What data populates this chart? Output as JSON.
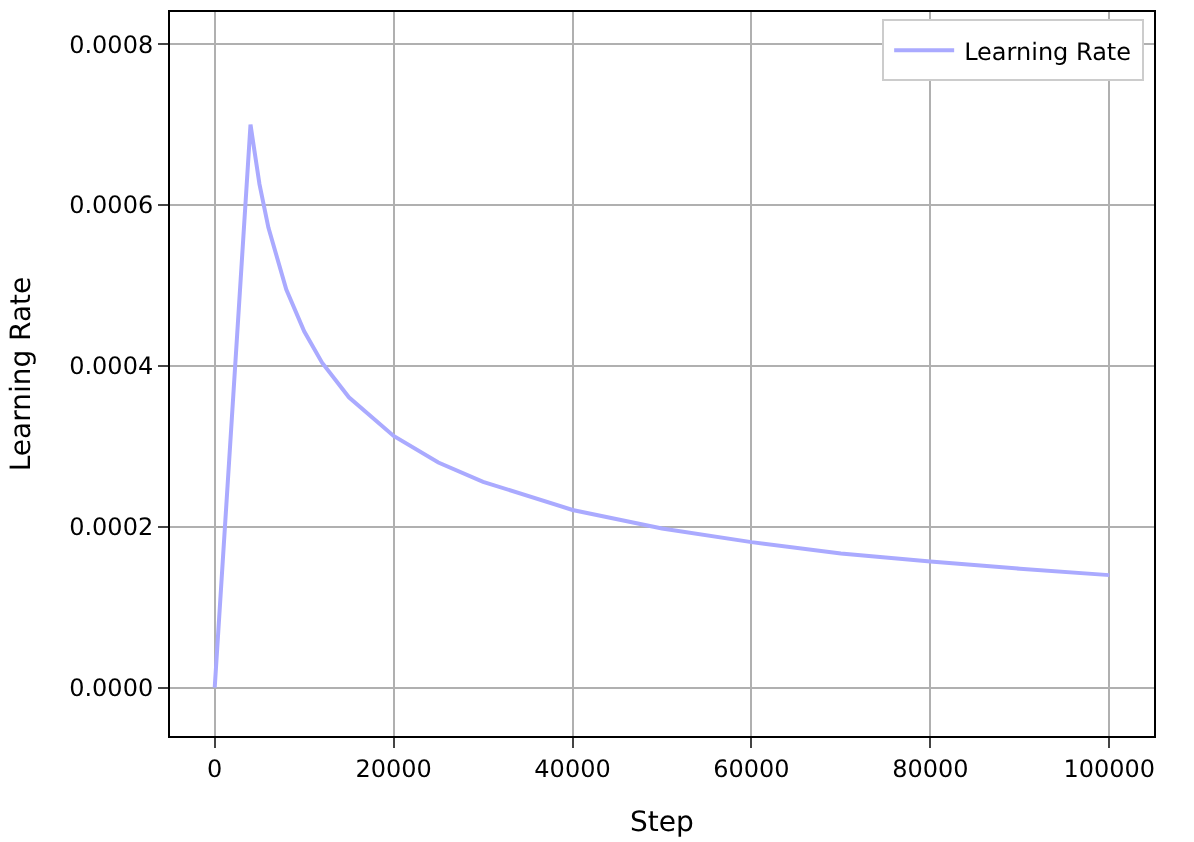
{
  "chart_data": {
    "type": "line",
    "xlabel": "Step",
    "ylabel": "Learning Rate",
    "x": [
      0,
      4000,
      5000,
      6000,
      8000,
      10000,
      12000,
      15000,
      20000,
      25000,
      30000,
      40000,
      50000,
      60000,
      70000,
      80000,
      90000,
      100000
    ],
    "series": [
      {
        "name": "Learning Rate",
        "color": "#aaaaff",
        "values": [
          0,
          0.0007,
          0.000626,
          0.000572,
          0.000495,
          0.000443,
          0.000404,
          0.000361,
          0.000313,
          0.00028,
          0.000256,
          0.000221,
          0.000198,
          0.000181,
          0.000167,
          0.000157,
          0.000148,
          0.00014
        ]
      }
    ],
    "xlim": [
      -5000,
      105000
    ],
    "xticks": [
      0,
      20000,
      40000,
      60000,
      80000,
      100000
    ],
    "ylim": [
      -6e-05,
      0.00084
    ],
    "yticks": [
      {
        "value": 0,
        "label": "0.0000"
      },
      {
        "value": 0.0002,
        "label": "0.0002"
      },
      {
        "value": 0.0004,
        "label": "0.0004"
      },
      {
        "value": 0.0006,
        "label": "0.0006"
      },
      {
        "value": 0.0008,
        "label": "0.0008"
      }
    ],
    "grid": true,
    "legend": "top right",
    "marker": "none",
    "line_style": "solid"
  }
}
